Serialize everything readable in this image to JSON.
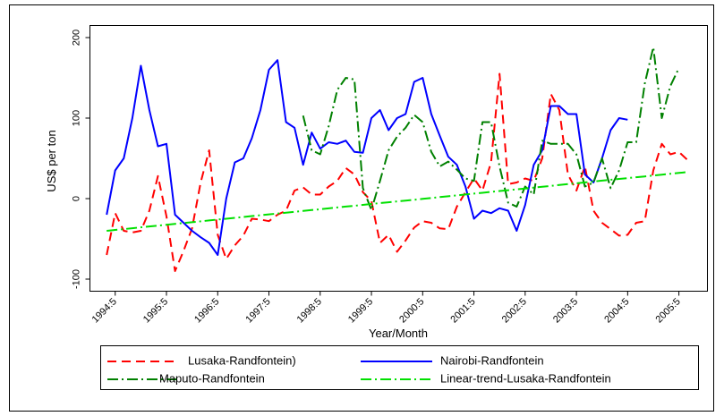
{
  "chart_data": {
    "type": "line",
    "x_label": "Year/Month",
    "y_label": "US$ per ton",
    "x": [
      1994.167,
      1994.333,
      1994.5,
      1994.667,
      1994.833,
      1995,
      1995.167,
      1995.333,
      1995.5,
      1995.667,
      1995.833,
      1996,
      1996.167,
      1996.333,
      1996.5,
      1996.667,
      1996.833,
      1997,
      1997.167,
      1997.333,
      1997.5,
      1997.667,
      1997.833,
      1998,
      1998.167,
      1998.333,
      1998.5,
      1998.667,
      1998.833,
      1999,
      1999.167,
      1999.333,
      1999.5,
      1999.667,
      1999.833,
      2000,
      2000.167,
      2000.333,
      2000.5,
      2000.667,
      2000.833,
      2001,
      2001.167,
      2001.333,
      2001.5,
      2001.667,
      2001.833,
      2002,
      2002.167,
      2002.333,
      2002.5,
      2002.667,
      2002.833,
      2003,
      2003.167,
      2003.333,
      2003.5,
      2003.667,
      2003.833,
      2004,
      2004.167,
      2004.333,
      2004.5,
      2004.667,
      2004.833,
      2005,
      2005.167,
      2005.333,
      2005.5
    ],
    "xlim": [
      1993.84,
      2005.89
    ],
    "xticks": [
      {
        "value": 1994.333,
        "label": "1994:5"
      },
      {
        "value": 1995.333,
        "label": "1995:5"
      },
      {
        "value": 1996.333,
        "label": "1996:5"
      },
      {
        "value": 1997.333,
        "label": "1997:5"
      },
      {
        "value": 1998.333,
        "label": "1998:5"
      },
      {
        "value": 1999.333,
        "label": "1999:5"
      },
      {
        "value": 2000.333,
        "label": "2000:5"
      },
      {
        "value": 2001.333,
        "label": "2001:5"
      },
      {
        "value": 2002.333,
        "label": "2002:5"
      },
      {
        "value": 2003.333,
        "label": "2003:5"
      },
      {
        "value": 2004.333,
        "label": "2004:5"
      },
      {
        "value": 2005.333,
        "label": "2005:5"
      }
    ],
    "ylim": [
      -115,
      215
    ],
    "yticks": [
      -100,
      0,
      100,
      200
    ],
    "grid": false,
    "legend_position": "bottom",
    "series": [
      {
        "name": "Lusaka-Randfontein)",
        "color": "#ff0000",
        "dash": "10,6",
        "values": [
          -70,
          -18,
          -40,
          -42,
          -40,
          -15,
          28,
          -22,
          -90,
          -65,
          -37,
          20,
          60,
          -45,
          -75,
          -58,
          -46,
          -25,
          -26,
          -28,
          -20,
          -15,
          10,
          14,
          5,
          5,
          15,
          22,
          38,
          30,
          8,
          -3,
          -55,
          -45,
          -66,
          -52,
          -36,
          -28,
          -30,
          -37,
          -38,
          -10,
          8,
          25,
          10,
          45,
          155,
          18,
          20,
          25,
          22,
          50,
          130,
          110,
          30,
          10,
          40,
          -15,
          -30,
          -38,
          -46,
          -45,
          -30,
          -28,
          35,
          68,
          55,
          58,
          48
        ]
      },
      {
        "name": "Nairobi-Randfontein",
        "color": "#0000ff",
        "dash": "",
        "values": [
          -20,
          35,
          50,
          100,
          165,
          110,
          65,
          68,
          -20,
          -30,
          -40,
          -48,
          -55,
          -70,
          0,
          45,
          50,
          75,
          110,
          160,
          172,
          95,
          88,
          42,
          82,
          62,
          70,
          68,
          72,
          58,
          57,
          100,
          110,
          85,
          100,
          105,
          145,
          150,
          105,
          78,
          52,
          42,
          15,
          -25,
          -15,
          -18,
          -12,
          -15,
          -40,
          -8,
          42,
          60,
          115,
          115,
          105,
          105,
          30,
          20,
          50,
          85,
          100,
          98,
          null,
          null,
          null,
          null,
          null,
          null,
          null
        ]
      },
      {
        "name": "Maputo-Randfontein",
        "color": "#008000",
        "dash": "12,4,2,4",
        "values": [
          null,
          null,
          null,
          null,
          null,
          null,
          null,
          null,
          null,
          null,
          null,
          null,
          null,
          null,
          null,
          null,
          null,
          null,
          null,
          null,
          null,
          null,
          null,
          103,
          60,
          55,
          90,
          135,
          150,
          148,
          13,
          -14,
          22,
          60,
          77,
          88,
          104,
          95,
          58,
          40,
          46,
          36,
          25,
          22,
          95,
          95,
          40,
          -5,
          -10,
          15,
          5,
          72,
          68,
          68,
          68,
          55,
          15,
          20,
          50,
          13,
          35,
          70,
          70,
          143,
          188,
          100,
          140,
          162,
          null
        ]
      },
      {
        "name": "Linear-trend-Lusaka-Randfontein",
        "color": "#00e000",
        "dash": "12,4,2,4",
        "values": [
          -40.0,
          -38.9,
          -37.9,
          -36.8,
          -35.7,
          -34.6,
          -33.6,
          -32.5,
          -31.4,
          -30.3,
          -29.3,
          -28.2,
          -27.1,
          -26.0,
          -25.0,
          -23.9,
          -22.8,
          -21.7,
          -20.7,
          -19.6,
          -18.5,
          -17.5,
          -16.4,
          -15.3,
          -14.2,
          -13.2,
          -12.1,
          -11.0,
          -9.9,
          -8.9,
          -7.8,
          -6.7,
          -5.6,
          -4.6,
          -3.5,
          -2.4,
          -1.4,
          -0.3,
          0.8,
          1.9,
          2.9,
          4.0,
          5.1,
          6.2,
          7.2,
          8.3,
          9.4,
          10.5,
          11.5,
          12.6,
          13.7,
          14.7,
          15.8,
          16.9,
          18.0,
          19.0,
          20.1,
          21.2,
          22.3,
          23.3,
          24.4,
          25.5,
          26.6,
          27.6,
          28.7,
          29.8,
          30.9,
          31.9,
          33.0
        ]
      }
    ]
  }
}
